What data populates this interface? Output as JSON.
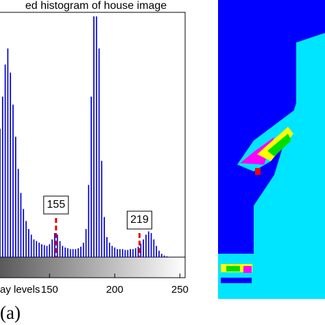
{
  "chart_data": {
    "type": "histogram",
    "title": "ed histogram of house image",
    "xlabel": "ay levels",
    "panel_label": "(a)",
    "color": "#0000cc",
    "threshold_color": "#e00000",
    "x": [
      112,
      114,
      116,
      118,
      120,
      122,
      124,
      126,
      128,
      130,
      132,
      134,
      136,
      138,
      140,
      142,
      144,
      146,
      148,
      150,
      152,
      154,
      156,
      158,
      160,
      162,
      164,
      166,
      168,
      170,
      172,
      174,
      176,
      178,
      180,
      182,
      184,
      186,
      188,
      190,
      192,
      194,
      196,
      198,
      200,
      202,
      204,
      206,
      208,
      210,
      212,
      214,
      216,
      218,
      220,
      222,
      224,
      226,
      228,
      230,
      232,
      234,
      236,
      238,
      240
    ],
    "values": [
      1.6,
      2.0,
      2.4,
      2.6,
      2.3,
      1.9,
      1.5,
      1.1,
      0.8,
      0.6,
      0.45,
      0.35,
      0.28,
      0.22,
      0.2,
      0.18,
      0.16,
      0.15,
      0.14,
      0.16,
      0.22,
      0.3,
      0.28,
      0.2,
      0.14,
      0.12,
      0.11,
      0.1,
      0.1,
      0.1,
      0.11,
      0.13,
      0.18,
      0.35,
      0.9,
      2.0,
      3.0,
      3.0,
      2.6,
      1.2,
      0.5,
      0.25,
      0.18,
      0.14,
      0.12,
      0.1,
      0.1,
      0.1,
      0.09,
      0.09,
      0.1,
      0.1,
      0.11,
      0.13,
      0.17,
      0.22,
      0.28,
      0.32,
      0.3,
      0.22,
      0.14,
      0.08,
      0.04,
      0.02,
      0.01
    ],
    "thresholds": [
      155,
      219
    ],
    "xlim": [
      112,
      254
    ],
    "ylim": [
      0,
      3.05
    ],
    "xticks": [
      150,
      200,
      250
    ]
  }
}
